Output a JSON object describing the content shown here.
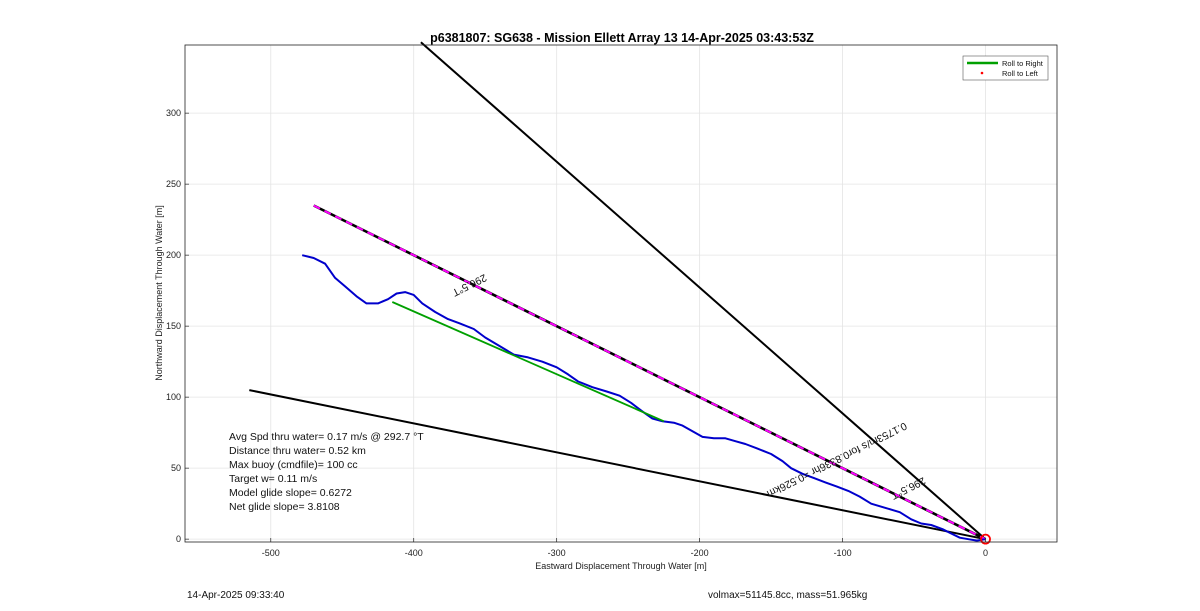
{
  "chart_data": {
    "type": "line",
    "title": "p6381807: SG638 - Mission Ellett Array 13 14-Apr-2025 03:43:53Z",
    "xlabel": "Eastward Displacement Through Water [m]",
    "ylabel": "Northward Displacement Through Water [m]",
    "xlim": [
      -560,
      50
    ],
    "ylim": [
      -2,
      348
    ],
    "xticks": [
      -500,
      -400,
      -300,
      -200,
      -100,
      0
    ],
    "yticks": [
      0,
      50,
      100,
      150,
      200,
      250,
      300
    ],
    "grid": true,
    "legend_position": "top-right",
    "legend": [
      {
        "label": "Roll to Right",
        "color": "#00a000",
        "style": "line"
      },
      {
        "label": "Roll to Left",
        "color": "#ff0000",
        "style": "point"
      }
    ],
    "series": [
      {
        "name": "",
        "kind": "track",
        "color": "#0000cc",
        "points": [
          [
            -478,
            200
          ],
          [
            -470,
            198
          ],
          [
            -462,
            194
          ],
          [
            -455,
            184
          ],
          [
            -448,
            178
          ],
          [
            -440,
            171
          ],
          [
            -433,
            166
          ],
          [
            -425,
            166
          ],
          [
            -418,
            169
          ],
          [
            -412,
            173
          ],
          [
            -406,
            174
          ],
          [
            -400,
            172
          ],
          [
            -394,
            166
          ],
          [
            -385,
            160
          ],
          [
            -376,
            155
          ],
          [
            -368,
            152
          ],
          [
            -358,
            148
          ],
          [
            -350,
            142
          ],
          [
            -340,
            136
          ],
          [
            -330,
            130
          ],
          [
            -320,
            128
          ],
          [
            -310,
            125
          ],
          [
            -300,
            121
          ],
          [
            -292,
            116
          ],
          [
            -285,
            111
          ],
          [
            -275,
            107
          ],
          [
            -265,
            104
          ],
          [
            -256,
            101
          ],
          [
            -248,
            96
          ],
          [
            -240,
            90
          ],
          [
            -233,
            85
          ],
          [
            -226,
            83
          ],
          [
            -218,
            82
          ],
          [
            -212,
            80
          ],
          [
            -205,
            76
          ],
          [
            -198,
            72
          ],
          [
            -190,
            71
          ],
          [
            -182,
            71
          ],
          [
            -175,
            69
          ],
          [
            -168,
            67
          ],
          [
            -160,
            64
          ],
          [
            -150,
            60
          ],
          [
            -142,
            55
          ],
          [
            -136,
            50
          ],
          [
            -128,
            46
          ],
          [
            -120,
            43
          ],
          [
            -112,
            40
          ],
          [
            -104,
            37
          ],
          [
            -96,
            34
          ],
          [
            -88,
            30
          ],
          [
            -80,
            25
          ],
          [
            -70,
            22
          ],
          [
            -60,
            19
          ],
          [
            -52,
            14
          ],
          [
            -45,
            11
          ],
          [
            -38,
            10
          ],
          [
            -30,
            7
          ],
          [
            -24,
            4
          ],
          [
            -18,
            1
          ],
          [
            -12,
            0
          ],
          [
            -6,
            -1
          ],
          [
            0,
            0
          ]
        ]
      },
      {
        "name": "Roll to Right",
        "kind": "green",
        "color": "#00a000",
        "points": [
          [
            -415,
            167
          ],
          [
            -225,
            83
          ]
        ]
      },
      {
        "name": "",
        "kind": "heading",
        "color": "#000000",
        "dashed_overlay": "#ff00ff",
        "points": [
          [
            -470,
            235
          ],
          [
            0,
            0
          ]
        ]
      },
      {
        "name": "",
        "kind": "cone",
        "color": "#000000",
        "points": [
          [
            -395,
            350
          ],
          [
            0,
            0
          ]
        ]
      },
      {
        "name": "",
        "kind": "cone",
        "color": "#000000",
        "points": [
          [
            -515,
            105
          ],
          [
            0,
            0
          ]
        ]
      }
    ],
    "origin_marker": {
      "x": 0,
      "y": 0,
      "color": "#ff0000"
    },
    "annotations": [
      {
        "text": "296.5°T",
        "x": -362,
        "y": 181,
        "angle": 153.4
      },
      {
        "text": "296.5°T",
        "x": -55,
        "y": 38,
        "angle": 153.4
      },
      {
        "text": "0.1753m/s for0.8336hr =0.526km",
        "x": -105,
        "y": 58,
        "angle": 153.4
      }
    ]
  },
  "info_lines": [
    "Avg Spd thru water=  0.17 m/s @ 292.7 °T",
    "Distance thru water=  0.52 km",
    "Max buoy (cmdfile)= 100 cc",
    "Target w= 0.11 m/s",
    "Model glide slope= 0.6272",
    "Net glide slope= 3.8108"
  ],
  "footer": {
    "left": "14-Apr-2025 09:33:40",
    "right": "volmax=51145.8cc, mass=51.965kg"
  }
}
